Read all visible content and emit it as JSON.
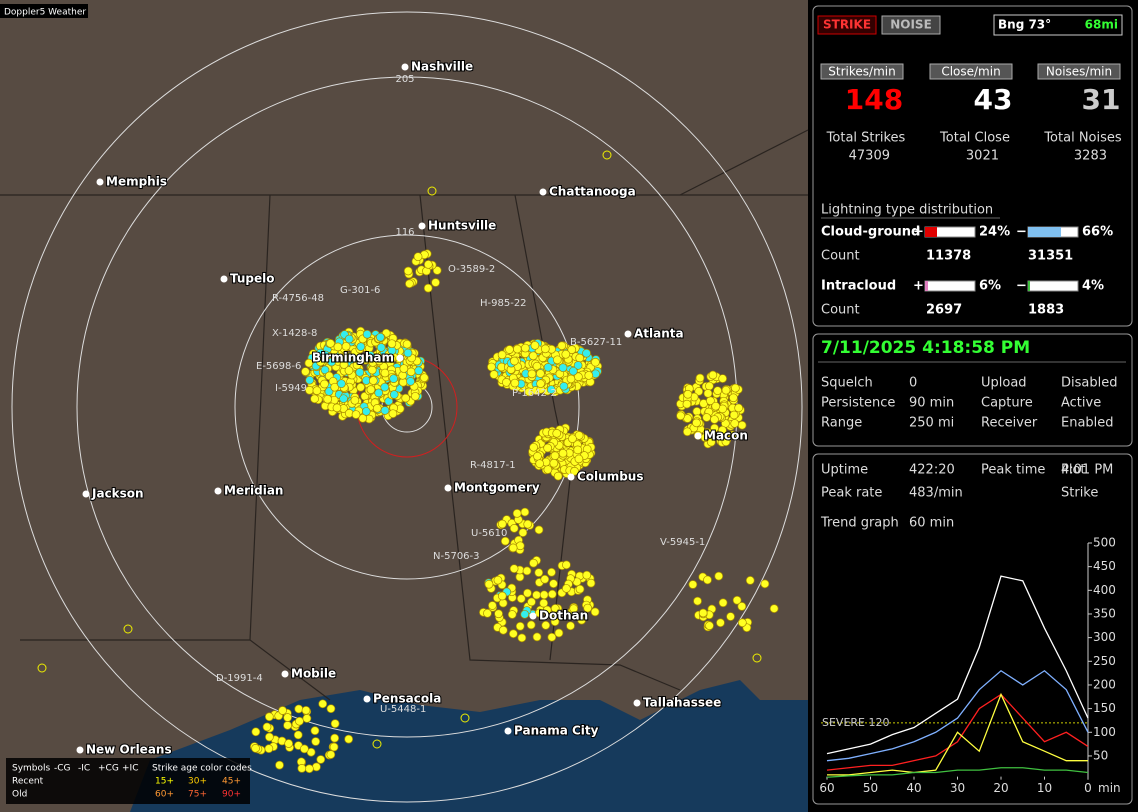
{
  "app_title": "Doppler5 Weather",
  "map": {
    "cities": [
      "Nashville",
      "Memphis",
      "Chattanooga",
      "Huntsville",
      "Tupelo",
      "Atlanta",
      "Birmingham",
      "Macon",
      "Jackson",
      "Meridian",
      "Montgomery",
      "Columbus",
      "Dothan",
      "Mobile",
      "Pensacola",
      "Tallahassee",
      "New Orleans",
      "Panama City"
    ],
    "ring_labels": [
      "205",
      "116"
    ],
    "cells": [
      "R-4756-48",
      "X-1428-8",
      "E-5698-6",
      "I-5949",
      "G-301-6",
      "O-3589-2",
      "H-985-22",
      "B-5627-11",
      "P-1642-2",
      "R-4817-1",
      "U-5610",
      "N-5706-3",
      "V-5945-1",
      "D-1991-4",
      "U-5448-1"
    ]
  },
  "legend": {
    "symbols": "Symbols",
    "types": [
      "-CG",
      "-IC",
      "+CG",
      "+IC"
    ],
    "age_title": "Strike age color codes",
    "recent": "Recent",
    "old": "Old",
    "recent_ages": [
      "15+",
      "30+",
      "45+"
    ],
    "old_ages": [
      "60+",
      "75+",
      "90+"
    ]
  },
  "panel": {
    "status": {
      "strike": "STRIKE",
      "noise": "NOISE",
      "bearing": "Bng 73°",
      "distance": "68mi"
    },
    "rates": [
      {
        "header": "Strikes/min",
        "value": 148,
        "total_label": "Total Strikes",
        "total": 47309
      },
      {
        "header": "Close/min",
        "value": 43,
        "total_label": "Total Close",
        "total": 3021
      },
      {
        "header": "Noises/min",
        "value": 31,
        "total_label": "Total Noises",
        "total": 3283
      }
    ],
    "distribution": {
      "title": "Lightning type distribution",
      "count_label": "Count",
      "rows": [
        {
          "name": "Cloud-ground",
          "plus": "+",
          "plus_pct": 24,
          "plus_label": "24%",
          "minus": "−",
          "minus_pct": 66,
          "minus_label": "66%",
          "plus_count": 11378,
          "minus_count": 31351
        },
        {
          "name": "Intracloud",
          "plus": "+",
          "plus_pct": 6,
          "plus_label": "6%",
          "minus": "−",
          "minus_pct": 4,
          "minus_label": "4%",
          "plus_count": 2697,
          "minus_count": 1883
        }
      ]
    },
    "datetime": "7/11/2025 4:18:58 PM",
    "settings": [
      [
        "Squelch",
        "0",
        "Upload",
        "Disabled"
      ],
      [
        "Persistence",
        "90 min",
        "Capture",
        "Active"
      ],
      [
        "Range",
        "250 mi",
        "Receiver",
        "Enabled"
      ]
    ],
    "stats": [
      [
        "Uptime",
        "422:20",
        "Peak time",
        "4:01 PM",
        "Plot"
      ],
      [
        "Peak rate",
        "483/min",
        "",
        "",
        "Strike"
      ]
    ],
    "trend_label": "Trend graph",
    "trend_window": "60 min"
  },
  "chart_data": {
    "type": "line",
    "x": [
      60,
      55,
      50,
      45,
      40,
      35,
      30,
      25,
      20,
      15,
      10,
      5,
      0
    ],
    "xlim": [
      60,
      0
    ],
    "xticks": [
      60,
      50,
      40,
      30,
      20,
      10,
      0
    ],
    "x_unit": "min",
    "ylim": [
      0,
      500
    ],
    "yticks": [
      50,
      100,
      150,
      200,
      250,
      300,
      350,
      400,
      450,
      500
    ],
    "threshold": {
      "label": "SEVERE 120",
      "value": 120
    },
    "series": [
      {
        "color": "#ffffff",
        "values": [
          55,
          65,
          75,
          95,
          110,
          140,
          170,
          280,
          430,
          420,
          320,
          230,
          130
        ]
      },
      {
        "color": "#7fb0ff",
        "values": [
          40,
          45,
          55,
          65,
          80,
          100,
          130,
          190,
          230,
          200,
          230,
          190,
          100
        ]
      },
      {
        "color": "#ff2020",
        "values": [
          20,
          25,
          30,
          30,
          40,
          50,
          80,
          150,
          180,
          130,
          80,
          100,
          70
        ]
      },
      {
        "color": "#ffff40",
        "values": [
          10,
          10,
          15,
          20,
          15,
          20,
          100,
          60,
          180,
          80,
          60,
          40,
          40
        ]
      },
      {
        "color": "#40c040",
        "values": [
          5,
          8,
          10,
          10,
          15,
          15,
          20,
          20,
          25,
          25,
          20,
          20,
          15
        ]
      }
    ]
  }
}
